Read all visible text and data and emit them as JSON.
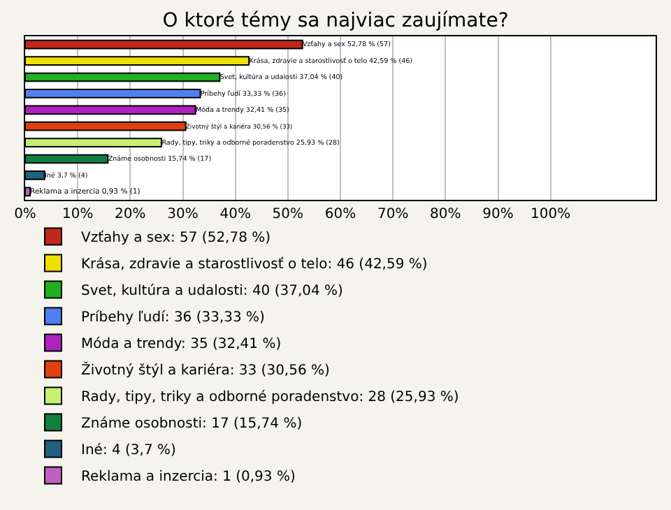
{
  "chart_data": {
    "type": "bar",
    "orientation": "horizontal",
    "title": "O ktoré témy sa najviac zaujímate?",
    "categories": [
      null,
      null,
      null,
      null,
      null,
      null,
      null,
      null,
      null,
      null
    ],
    "series": [
      {
        "name": "Vzťahy a sex: 57 (52,78 %)",
        "color": "#c0281c",
        "values": [
          52.78,
          null,
          null,
          null,
          null,
          null,
          null,
          null,
          null,
          null
        ],
        "value_labels": [
          "Vzťahy a sex 52,78 % (57)",
          null,
          null,
          null,
          null,
          null,
          null,
          null,
          null,
          null
        ]
      },
      {
        "name": "Krása, zdravie a starostlivosť o telo: 46 (42,59 %)",
        "color": "#f0e000",
        "values": [
          null,
          42.59,
          null,
          null,
          null,
          null,
          null,
          null,
          null,
          null
        ],
        "value_labels": [
          null,
          "Krása, zdravie a starostlivosť o telo 42,59 % (46)",
          null,
          null,
          null,
          null,
          null,
          null,
          null,
          null
        ]
      },
      {
        "name": "Svet, kultúra a udalosti: 40 (37,04 %)",
        "color": "#20b020",
        "values": [
          null,
          null,
          37.04,
          null,
          null,
          null,
          null,
          null,
          null,
          null
        ],
        "value_labels": [
          null,
          null,
          "Svet, kultúra a udalosti 37,04 % (40)",
          null,
          null,
          null,
          null,
          null,
          null,
          null
        ]
      },
      {
        "name": "Príbehy ľudí: 36 (33,33 %)",
        "color": "#5080f0",
        "values": [
          null,
          null,
          null,
          33.33,
          null,
          null,
          null,
          null,
          null,
          null
        ],
        "value_labels": [
          null,
          null,
          null,
          "Príbehy ľudí 33,33 % (36)",
          null,
          null,
          null,
          null,
          null,
          null
        ]
      },
      {
        "name": "Móda a trendy: 35 (32,41 %)",
        "color": "#b020c0",
        "values": [
          null,
          null,
          null,
          null,
          32.41,
          null,
          null,
          null,
          null,
          null
        ],
        "value_labels": [
          null,
          null,
          null,
          null,
          "Móda a trendy 32,41 % (35)",
          null,
          null,
          null,
          null,
          null
        ]
      },
      {
        "name": "Životný štýl a kariéra: 33 (30,56 %)",
        "color": "#e04010",
        "values": [
          null,
          null,
          null,
          null,
          null,
          30.56,
          null,
          null,
          null,
          null
        ],
        "value_labels": [
          null,
          null,
          null,
          null,
          null,
          "Životný štýl a kariéra 30,56 % (33)",
          null,
          null,
          null,
          null
        ]
      },
      {
        "name": "Rady, tipy, triky a odborné poradenstvo: 28 (25,93 %)",
        "color": "#c8f070",
        "values": [
          null,
          null,
          null,
          null,
          null,
          null,
          25.93,
          null,
          null,
          null
        ],
        "value_labels": [
          null,
          null,
          null,
          null,
          null,
          null,
          "Rady, tipy, triky a odborné poradenstvo 25,93 % (28)",
          null,
          null,
          null
        ]
      },
      {
        "name": "Známe osobnosti: 17 (15,74 %)",
        "color": "#108040",
        "values": [
          null,
          null,
          null,
          null,
          null,
          null,
          null,
          15.74,
          null,
          null
        ],
        "value_labels": [
          null,
          null,
          null,
          null,
          null,
          null,
          null,
          "Známe osobnosti 15,74 % (17)",
          null,
          null
        ]
      },
      {
        "name": "Iné: 4 (3,7 %)",
        "color": "#206080",
        "values": [
          null,
          null,
          null,
          null,
          null,
          null,
          null,
          null,
          3.7,
          null
        ],
        "value_labels": [
          null,
          null,
          null,
          null,
          null,
          null,
          null,
          null,
          "Iné 3,7 % (4)",
          null
        ]
      },
      {
        "name": "Reklama a inzercia: 1 (0,93 %)",
        "color": "#c060c0",
        "values": [
          null,
          null,
          null,
          null,
          null,
          null,
          null,
          null,
          null,
          0.93
        ],
        "value_labels": [
          null,
          null,
          null,
          null,
          null,
          null,
          null,
          null,
          null,
          "Reklama a inzercia 0,93 % (1)"
        ]
      }
    ],
    "xlim": [
      0,
      120
    ],
    "xticks": [
      {
        "value": 0,
        "label": "0%"
      },
      {
        "value": 10,
        "label": "10%"
      },
      {
        "value": 20,
        "label": "20%"
      },
      {
        "value": 30,
        "label": "30%"
      },
      {
        "value": 40,
        "label": "40%"
      },
      {
        "value": 50,
        "label": "50%"
      },
      {
        "value": 60,
        "label": "60%"
      },
      {
        "value": 70,
        "label": "70%"
      },
      {
        "value": 80,
        "label": "80%"
      },
      {
        "value": 90,
        "label": "90%"
      },
      {
        "value": 100,
        "label": "100%"
      }
    ],
    "grid": "x",
    "legend": "bottom"
  }
}
